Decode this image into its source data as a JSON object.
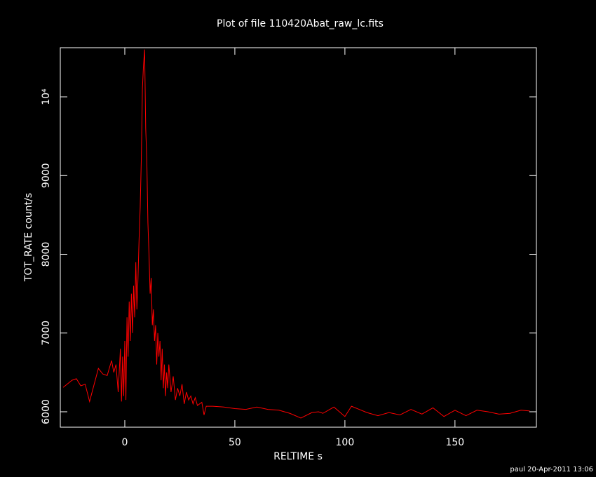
{
  "chart_data": {
    "type": "line",
    "title": "Plot of file 110420Abat_raw_lc.fits",
    "xlabel": "RELTIME  s",
    "ylabel": "TOT_RATE  count/s",
    "footer": "paul 20-Apr-2011 13:06",
    "xlim": [
      -29.3,
      187
    ],
    "ylim": [
      5804,
      10624
    ],
    "xticks": [
      0,
      50,
      100,
      150
    ],
    "yticks": [
      6000,
      7000,
      8000,
      9000,
      {
        "value": 10000,
        "label": "10⁴"
      }
    ],
    "x": [
      -28,
      -24,
      -22,
      -20,
      -18,
      -16,
      -12,
      -10,
      -8,
      -6,
      -5,
      -4,
      -3,
      -2,
      -1.5,
      -1,
      -0.5,
      0,
      0.5,
      1,
      1.5,
      2,
      2.5,
      3,
      3.5,
      4,
      4.5,
      5,
      5.5,
      6,
      6.5,
      7,
      7.5,
      8,
      8.5,
      9,
      9.5,
      10,
      10.5,
      11,
      11.5,
      12,
      12.5,
      13,
      13.5,
      14,
      14.5,
      15,
      15.5,
      16,
      16.5,
      17,
      17.5,
      18,
      18.5,
      19,
      19.5,
      20,
      21,
      22,
      23,
      24,
      25,
      26,
      27,
      28,
      29,
      30,
      31,
      32,
      33,
      35,
      36,
      37,
      40,
      45,
      50,
      55,
      60,
      65,
      70,
      75,
      80,
      85,
      88,
      90,
      95,
      100,
      103,
      110,
      115,
      120,
      125,
      130,
      135,
      140,
      145,
      150,
      155,
      160,
      165,
      170,
      175,
      180,
      184
    ],
    "series": [
      {
        "name": "TOT_RATE",
        "color": "#ff0000",
        "values": [
          6310,
          6400,
          6420,
          6330,
          6350,
          6130,
          6550,
          6480,
          6460,
          6650,
          6500,
          6600,
          6250,
          6800,
          6130,
          6700,
          6200,
          6900,
          6150,
          7200,
          6700,
          7400,
          6900,
          7500,
          7000,
          7600,
          7200,
          7900,
          7300,
          7700,
          8200,
          8600,
          9200,
          10100,
          10400,
          10600,
          9600,
          9200,
          8400,
          8000,
          7500,
          7700,
          7100,
          7300,
          6900,
          7100,
          6600,
          7000,
          6700,
          6900,
          6400,
          6800,
          6300,
          6600,
          6200,
          6500,
          6300,
          6600,
          6250,
          6450,
          6150,
          6300,
          6200,
          6350,
          6100,
          6250,
          6150,
          6200,
          6100,
          6180,
          6080,
          6120,
          5960,
          6070,
          6070,
          6060,
          6040,
          6030,
          6060,
          6030,
          6020,
          5980,
          5920,
          5990,
          6000,
          5980,
          6060,
          5940,
          6070,
          5990,
          5950,
          5990,
          5960,
          6030,
          5970,
          6050,
          5940,
          6020,
          5950,
          6020,
          6000,
          5970,
          5980,
          6020,
          6010
        ]
      }
    ]
  }
}
